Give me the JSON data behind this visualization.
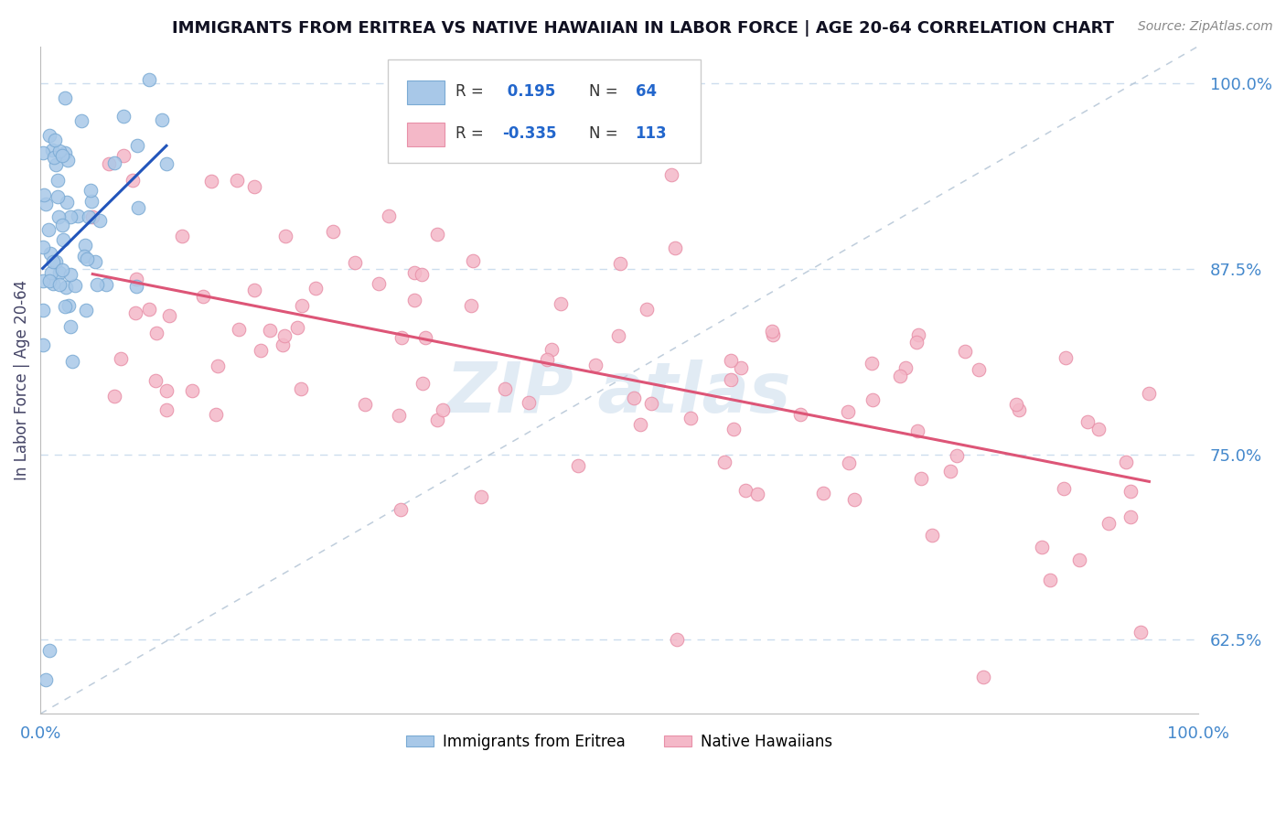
{
  "title": "IMMIGRANTS FROM ERITREA VS NATIVE HAWAIIAN IN LABOR FORCE | AGE 20-64 CORRELATION CHART",
  "source": "Source: ZipAtlas.com",
  "ylabel": "In Labor Force | Age 20-64",
  "r_eritrea": 0.195,
  "n_eritrea": 64,
  "r_hawaiian": -0.335,
  "n_hawaiian": 113,
  "eritrea_color": "#a8c8e8",
  "eritrea_edge_color": "#7aaad4",
  "hawaiian_color": "#f4b8c8",
  "hawaiian_edge_color": "#e890a8",
  "eritrea_line_color": "#2255bb",
  "hawaiian_line_color": "#dd5577",
  "diagonal_color": "#b8c8d8",
  "background_color": "#ffffff",
  "grid_color": "#ccddee",
  "title_color": "#111122",
  "watermark_color": "#c5d8ea",
  "axis_label_color": "#444466",
  "tick_color": "#4488cc",
  "legend_box_color": "#dddddd",
  "legend_r_label_color": "#333333",
  "legend_val_color": "#2266cc",
  "ylim_low": 0.575,
  "ylim_high": 1.025,
  "yticks": [
    0.625,
    0.75,
    0.875,
    1.0
  ],
  "ytick_labels": [
    "62.5%",
    "75.0%",
    "87.5%",
    "100.0%"
  ],
  "xtick_labels": [
    "0.0%",
    "100.0%"
  ]
}
